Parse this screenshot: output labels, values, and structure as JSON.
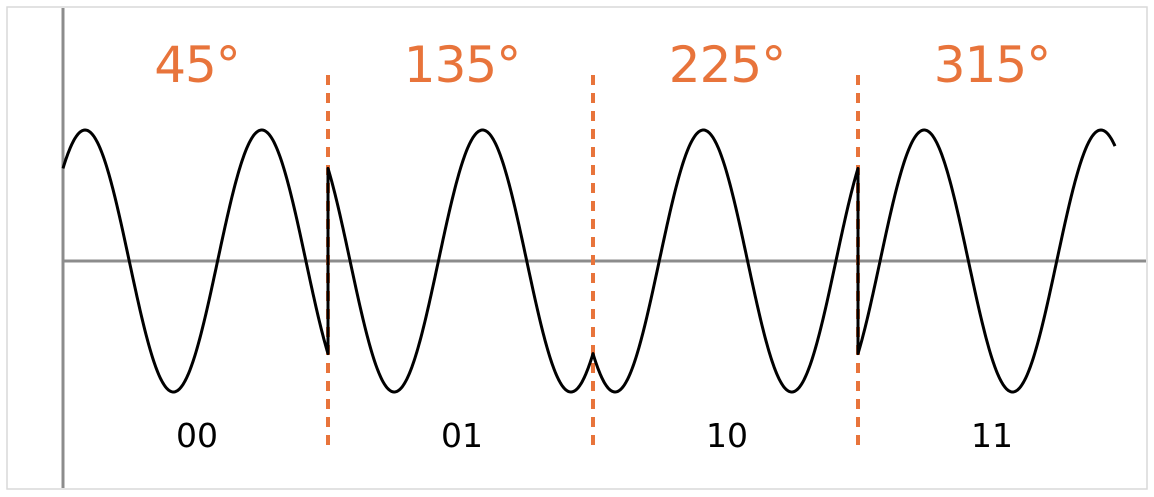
{
  "colors": {
    "accent": "#e8743b",
    "wave": "#000000",
    "axis": "#8c8c8c",
    "frame": "#d9d9d9"
  },
  "segments": [
    {
      "phase": "45°",
      "phase_deg": 45,
      "bits": "00"
    },
    {
      "phase": "135°",
      "phase_deg": 135,
      "bits": "01"
    },
    {
      "phase": "225°",
      "phase_deg": 225,
      "bits": "10"
    },
    {
      "phase": "315°",
      "phase_deg": 315,
      "bits": "11"
    }
  ],
  "cycles_per_segment": 1.5
}
